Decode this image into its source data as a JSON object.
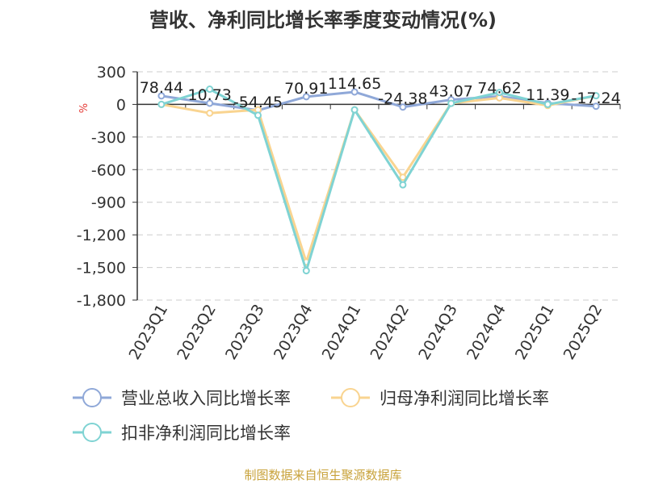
{
  "chart_data": {
    "type": "line",
    "title": "营收、净利同比增长率季度变动情况(%)",
    "unit_label": "%",
    "categories": [
      "2023Q1",
      "2023Q2",
      "2023Q3",
      "2023Q4",
      "2024Q1",
      "2024Q2",
      "2024Q3",
      "2024Q4",
      "2025Q1",
      "2025Q2"
    ],
    "ylim": [
      -1800,
      300
    ],
    "yticks": [
      300,
      0,
      -300,
      -600,
      -900,
      -1200,
      -1500,
      -1800
    ],
    "ytick_labels": [
      "300",
      "0",
      "-300",
      "-600",
      "-900",
      "-1,200",
      "-1,500",
      "-1,800"
    ],
    "grid": true,
    "legend_position": "bottom",
    "series": [
      {
        "name": "营业总收入同比增长率",
        "color": "#8fa8d8",
        "values": [
          78.44,
          10.73,
          -54.45,
          70.91,
          114.65,
          -24.38,
          43.07,
          74.62,
          11.39,
          -17.24
        ],
        "labels": [
          "78.44",
          "10.73",
          "-54.45",
          "70.91",
          "114.65",
          "-24.38",
          "43.07",
          "74.62",
          "11.39",
          "-17.24"
        ]
      },
      {
        "name": "归母净利润同比增长率",
        "color": "#f9d490",
        "values": [
          0,
          -80,
          -50,
          -1450,
          -50,
          -670,
          10,
          60,
          -10,
          80
        ]
      },
      {
        "name": "扣非净利润同比增长率",
        "color": "#7fd3d3",
        "values": [
          0,
          140,
          -100,
          -1530,
          -50,
          -740,
          10,
          110,
          0,
          80
        ]
      }
    ],
    "source": "制图数据来自恒生聚源数据库"
  }
}
